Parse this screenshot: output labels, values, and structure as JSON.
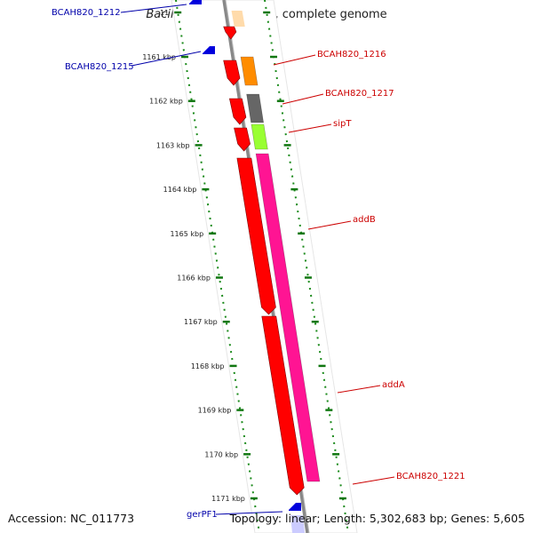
{
  "title": {
    "organism": "Bacillus cereus",
    "strain_suffix": "AH820, complete genome"
  },
  "footer": {
    "accession": "Accession: NC_011773",
    "summary": "Topology: linear; Length: 5,302,683 bp; Genes: 5,605"
  },
  "ruler": {
    "ticks": [
      {
        "label": "11",
        "kbp": 1160
      },
      {
        "label": "1161 kbp",
        "kbp": 1161
      },
      {
        "label": "1162 kbp",
        "kbp": 1162
      },
      {
        "label": "1163 kbp",
        "kbp": 1163
      },
      {
        "label": "1164 kbp",
        "kbp": 1164
      },
      {
        "label": "1165 kbp",
        "kbp": 1165
      },
      {
        "label": "1166 kbp",
        "kbp": 1166
      },
      {
        "label": "1167 kbp",
        "kbp": 1167
      },
      {
        "label": "1168 kbp",
        "kbp": 1168
      },
      {
        "label": "1169 kbp",
        "kbp": 1169
      },
      {
        "label": "1170 kbp",
        "kbp": 1170
      },
      {
        "label": "1171 kbp",
        "kbp": 1171
      }
    ]
  },
  "genes": [
    {
      "name": "BCAH820_1212",
      "color": "#0000cc",
      "strand": "minus",
      "start_kbp": 1160.15,
      "end_kbp": 1160.35
    },
    {
      "name": "BCAH820_1215",
      "color": "#0000cc",
      "strand": "minus",
      "start_kbp": 1160.85,
      "end_kbp": 1161.0
    },
    {
      "name": "BCAH820_1216",
      "color": "#ff8c00",
      "strand": "plus",
      "start_kbp": 1161.05,
      "end_kbp": 1161.6
    },
    {
      "name": "BCAH820_1217",
      "color": "#666666",
      "strand": "plus",
      "start_kbp": 1161.95,
      "end_kbp": 1162.55
    },
    {
      "name": "sipT",
      "color": "#99ff33",
      "strand": "plus",
      "start_kbp": 1162.6,
      "end_kbp": 1163.2
    },
    {
      "name": "addB",
      "color": "#ff1493",
      "strand": "plus",
      "start_kbp": 1163.3,
      "end_kbp": 1170.6
    },
    {
      "name": "addA",
      "color": "#ff1493",
      "strand": "plus",
      "start_kbp": 1163.3,
      "end_kbp": 1170.6
    },
    {
      "name": "BCAH820_1221",
      "color": "#ff0000",
      "strand": "plus",
      "start_kbp": 1170.65,
      "end_kbp": 1170.85
    },
    {
      "name": "gerPF1",
      "color": "#0000cc",
      "strand": "minus",
      "start_kbp": 1171.3,
      "end_kbp": 1171.5
    }
  ],
  "cds_track": {
    "color": "#ff0000"
  }
}
